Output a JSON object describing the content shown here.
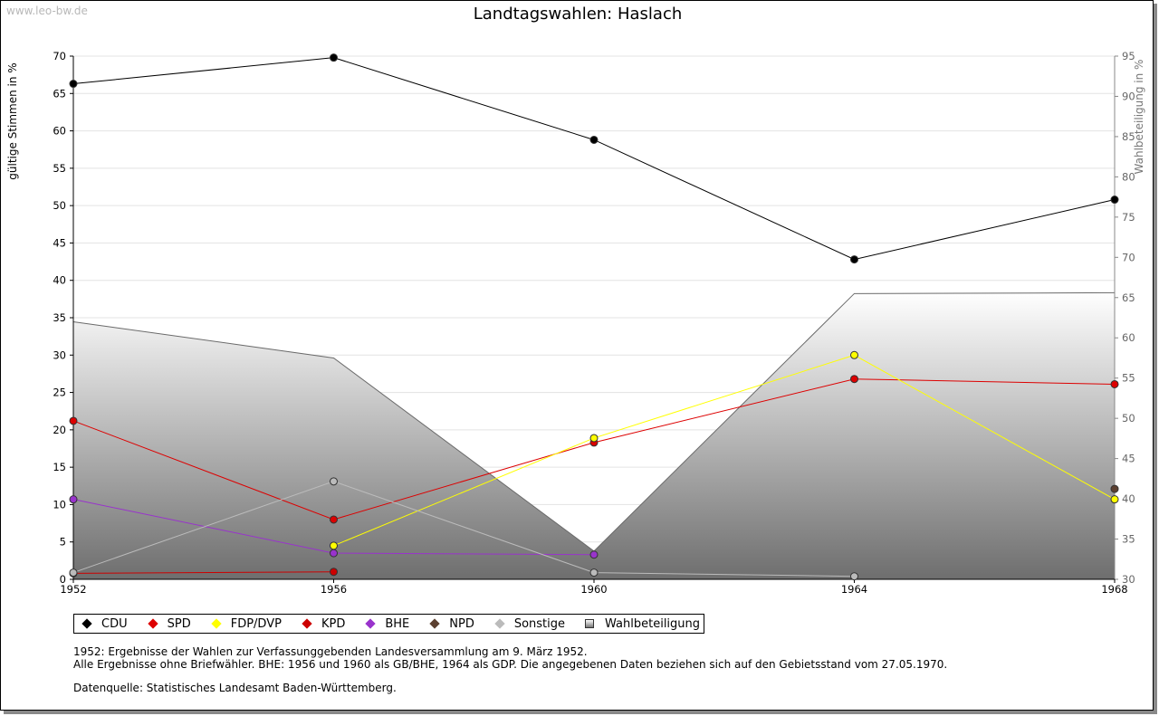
{
  "watermark": "www.leo-bw.de",
  "chart_data": {
    "type": "line",
    "title": "Landtagswahlen: Haslach",
    "x": [
      "1952",
      "1956",
      "1960",
      "1964",
      "1968"
    ],
    "ylabel": "gültige Stimmen in %",
    "ylabel_right": "Wahlbeteiligung in %",
    "ylim": [
      0,
      70
    ],
    "ylim_right": [
      30,
      95
    ],
    "yticks": [
      0,
      5,
      10,
      15,
      20,
      25,
      30,
      35,
      40,
      45,
      50,
      55,
      60,
      65,
      70
    ],
    "yticks_right": [
      30,
      35,
      40,
      45,
      50,
      55,
      60,
      65,
      70,
      75,
      80,
      85,
      90,
      95
    ],
    "grid": true,
    "legend_position": "bottom",
    "series": [
      {
        "name": "CDU",
        "color": "#000000",
        "values": [
          66.3,
          69.8,
          58.8,
          42.8,
          50.8
        ]
      },
      {
        "name": "SPD",
        "color": "#dd0000",
        "values": [
          21.2,
          8.0,
          18.3,
          26.8,
          26.1
        ]
      },
      {
        "name": "FDP/DVP",
        "color": "#ffff00",
        "values": [
          null,
          4.5,
          18.9,
          30.0,
          10.7
        ]
      },
      {
        "name": "KPD",
        "color": "#cc0000",
        "values": [
          0.8,
          1.0,
          null,
          null,
          null
        ]
      },
      {
        "name": "BHE",
        "color": "#9933cc",
        "values": [
          10.7,
          3.5,
          3.3,
          null,
          null
        ]
      },
      {
        "name": "NPD",
        "color": "#5c4030",
        "values": [
          null,
          null,
          null,
          null,
          12.1
        ]
      },
      {
        "name": "Sonstige",
        "color": "#bbbbbb",
        "values": [
          0.9,
          13.1,
          0.9,
          0.4,
          null
        ]
      }
    ],
    "turnout": {
      "name": "Wahlbeteiligung",
      "color": "#aaaaaa",
      "values": [
        62.0,
        57.5,
        33.5,
        65.5,
        65.6
      ]
    }
  },
  "notes": {
    "line1": "1952: Ergebnisse der Wahlen zur Verfassunggebenden Landesversammlung am 9. März 1952.",
    "line2": "Alle Ergebnisse ohne Briefwähler. BHE: 1956 und 1960 als GB/BHE, 1964 als GDP. Die angegebenen Daten beziehen sich auf den Gebietsstand vom 27.05.1970.",
    "source": "Datenquelle: Statistisches Landesamt Baden-Württemberg."
  }
}
